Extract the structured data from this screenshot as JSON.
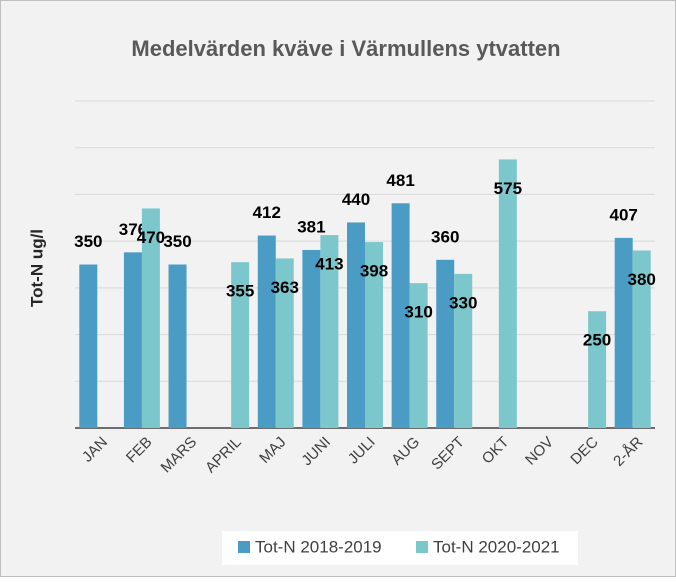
{
  "chart_data": {
    "type": "bar",
    "title": "Medelvärden kväve i Värmullens ytvatten",
    "y_label": "Tot-N ug/l",
    "categories": [
      "JAN",
      "FEB",
      "MARS",
      "APRIL",
      "MAJ",
      "JUNI",
      "JULI",
      "AUG",
      "SEPT",
      "OKT",
      "NOV",
      "DEC",
      "2-ÅR"
    ],
    "series": [
      {
        "name": "Tot-N 2018-2019",
        "color": "#4a9cc4",
        "values": [
          350,
          376,
          350,
          null,
          412,
          381,
          440,
          481,
          360,
          null,
          null,
          null,
          407
        ]
      },
      {
        "name": "Tot-N 2020-2021",
        "color": "#7cc7cc",
        "values": [
          null,
          470,
          null,
          355,
          363,
          413,
          398,
          310,
          330,
          575,
          null,
          250,
          380
        ]
      }
    ],
    "ylim": [
      0,
      700
    ],
    "yticks": [
      0,
      100,
      200,
      300,
      400,
      500,
      600,
      700
    ],
    "grid": true,
    "legend": "bottom"
  }
}
